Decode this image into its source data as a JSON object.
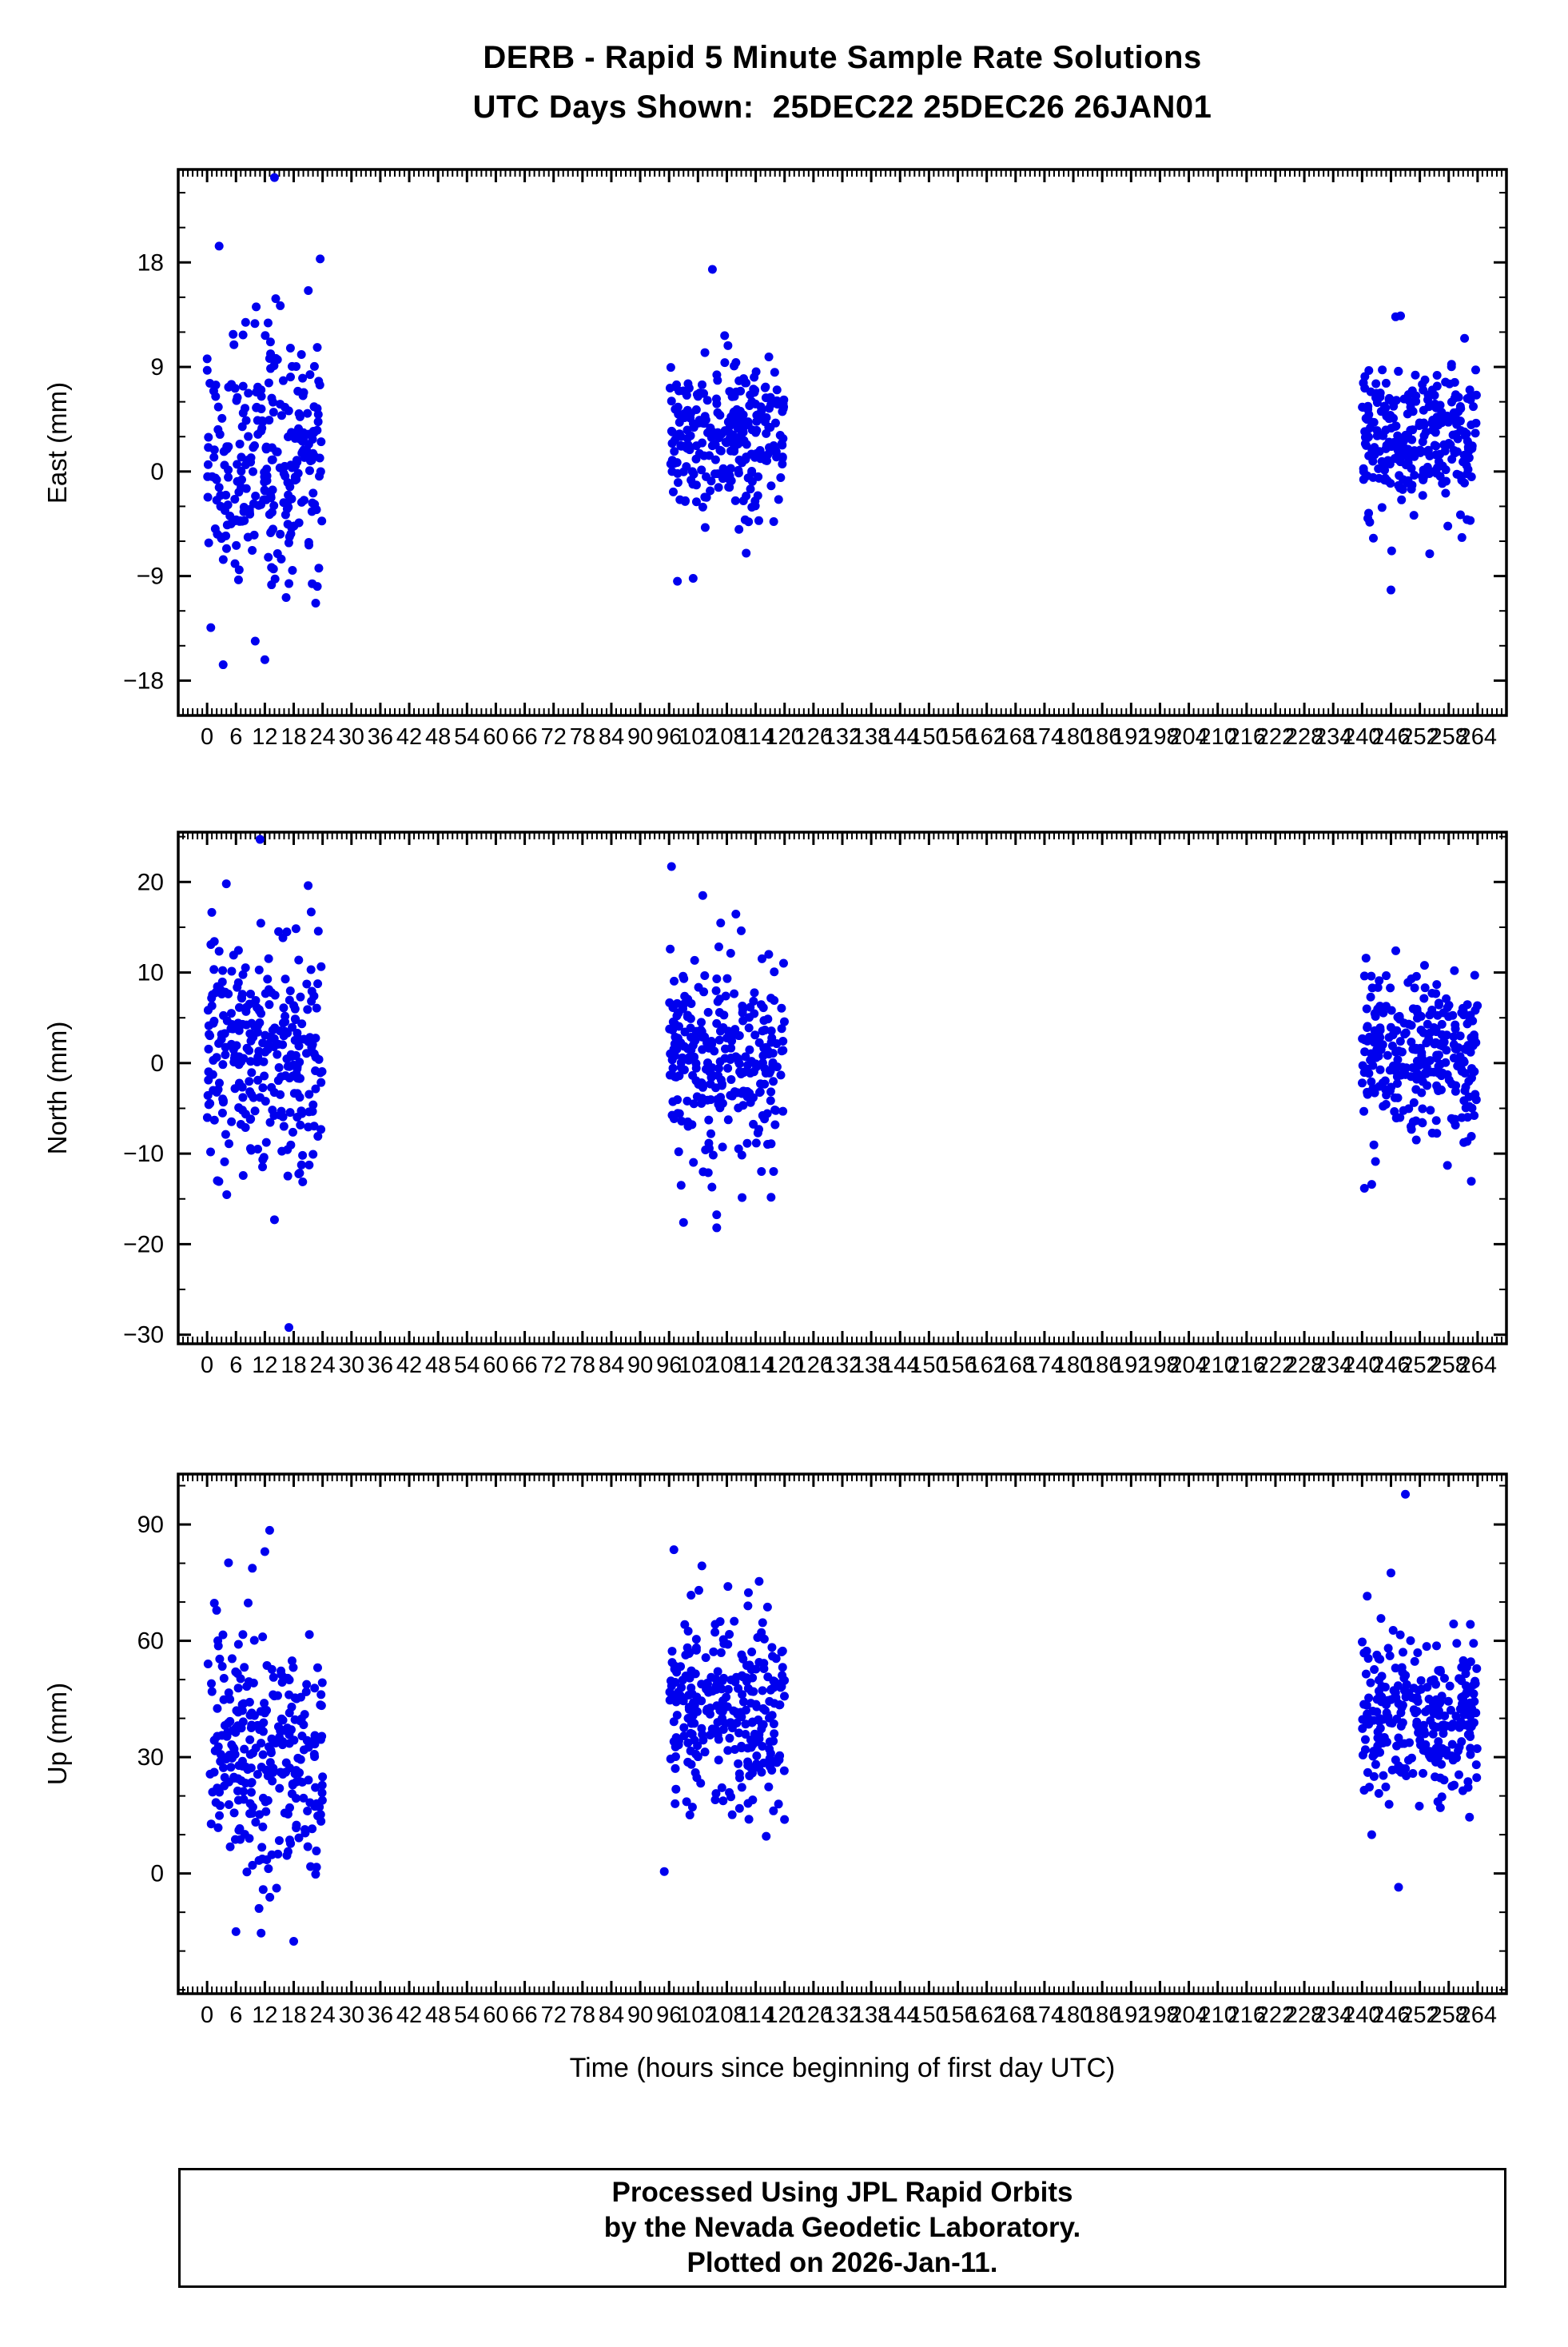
{
  "title": "DERB - Rapid 5 Minute Sample Rate Solutions",
  "subtitle": "UTC Days Shown:  25DEC22 25DEC26 26JAN01",
  "footer": {
    "line1": "Processed Using JPL Rapid Orbits",
    "line2": "by the Nevada Geodetic Laboratory.",
    "line3": "Plotted on 2026-Jan-11."
  },
  "colors": {
    "marker": "#0000EE",
    "axis": "#000000"
  },
  "chart_data": {
    "type": "scatter",
    "station": "DERB",
    "utc_days": [
      "25DEC22",
      "25DEC26",
      "26JAN01"
    ],
    "seed": 7,
    "marker": {
      "shape": "circle",
      "color": "#0000EE",
      "radius_px": 5.5
    },
    "x": {
      "label": "Time (hours since beginning of first day UTC)",
      "lim": [
        -6,
        270
      ],
      "major_step": 6,
      "minor_step": 1,
      "ticks": [
        0,
        6,
        12,
        18,
        24,
        30,
        36,
        42,
        48,
        54,
        60,
        66,
        72,
        78,
        84,
        90,
        96,
        102,
        108,
        114,
        120,
        126,
        132,
        138,
        144,
        150,
        156,
        162,
        168,
        174,
        180,
        186,
        192,
        198,
        204,
        210,
        216,
        222,
        228,
        234,
        240,
        246,
        252,
        258,
        264
      ]
    },
    "panels": [
      {
        "name": "East",
        "ylabel": "East (mm)",
        "ylim": [
          -21,
          26
        ],
        "yticks": [
          -18,
          -9,
          0,
          9,
          18
        ],
        "y_minor_step": 3,
        "clusters": [
          {
            "x_range": [
              0,
              24
            ],
            "mean": 1.0,
            "std": 5.5,
            "n": 280
          },
          {
            "x_range": [
              96,
              120
            ],
            "mean": 3.2,
            "std": 3.6,
            "n": 280
          },
          {
            "x_range": [
              240,
              264
            ],
            "mean": 3.0,
            "std": 3.0,
            "n": 280
          }
        ],
        "outliers": [
          [
            14,
            25.3
          ],
          [
            2.5,
            19.4
          ],
          [
            23.5,
            18.3
          ],
          [
            12,
            -16.2
          ],
          [
            10,
            -14.6
          ],
          [
            105,
            17.4
          ],
          [
            101,
            -9.2
          ],
          [
            248,
            13.4
          ],
          [
            246,
            -10.2
          ]
        ]
      },
      {
        "name": "North",
        "ylabel": "North (mm)",
        "ylim": [
          -31,
          25.5
        ],
        "yticks": [
          -30,
          -20,
          -10,
          0,
          10,
          20
        ],
        "y_minor_step": 5,
        "clusters": [
          {
            "x_range": [
              0,
              24
            ],
            "mean": 1.0,
            "std": 6.5,
            "n": 280
          },
          {
            "x_range": [
              96,
              120
            ],
            "mean": 0.5,
            "std": 5.5,
            "n": 280
          },
          {
            "x_range": [
              240,
              264
            ],
            "mean": 1.5,
            "std": 4.5,
            "n": 280
          }
        ],
        "outliers": [
          [
            11,
            24.7
          ],
          [
            4,
            19.8
          ],
          [
            21,
            19.6
          ],
          [
            17,
            -29.2
          ],
          [
            14,
            -17.3
          ],
          [
            96.5,
            21.7
          ],
          [
            103,
            18.5
          ],
          [
            99,
            -17.6
          ],
          [
            247,
            12.4
          ],
          [
            242,
            -13.4
          ]
        ]
      },
      {
        "name": "Up",
        "ylabel": "Up (mm)",
        "ylim": [
          -31,
          103
        ],
        "yticks": [
          0,
          30,
          60,
          90
        ],
        "y_minor_step": 10,
        "clusters": [
          {
            "x_range": [
              0,
              24
            ],
            "mean": 32,
            "std": 16,
            "n": 280
          },
          {
            "x_range": [
              96,
              120
            ],
            "mean": 42,
            "std": 13,
            "n": 280
          },
          {
            "x_range": [
              240,
              264
            ],
            "mean": 40,
            "std": 11,
            "n": 280
          }
        ],
        "outliers": [
          [
            13,
            88.5
          ],
          [
            12,
            83
          ],
          [
            6,
            -15
          ],
          [
            18,
            -17.5
          ],
          [
            97,
            83.5
          ],
          [
            95,
            0.5
          ],
          [
            249,
            97.8
          ],
          [
            246,
            77.5
          ],
          [
            242,
            10
          ]
        ]
      }
    ]
  }
}
